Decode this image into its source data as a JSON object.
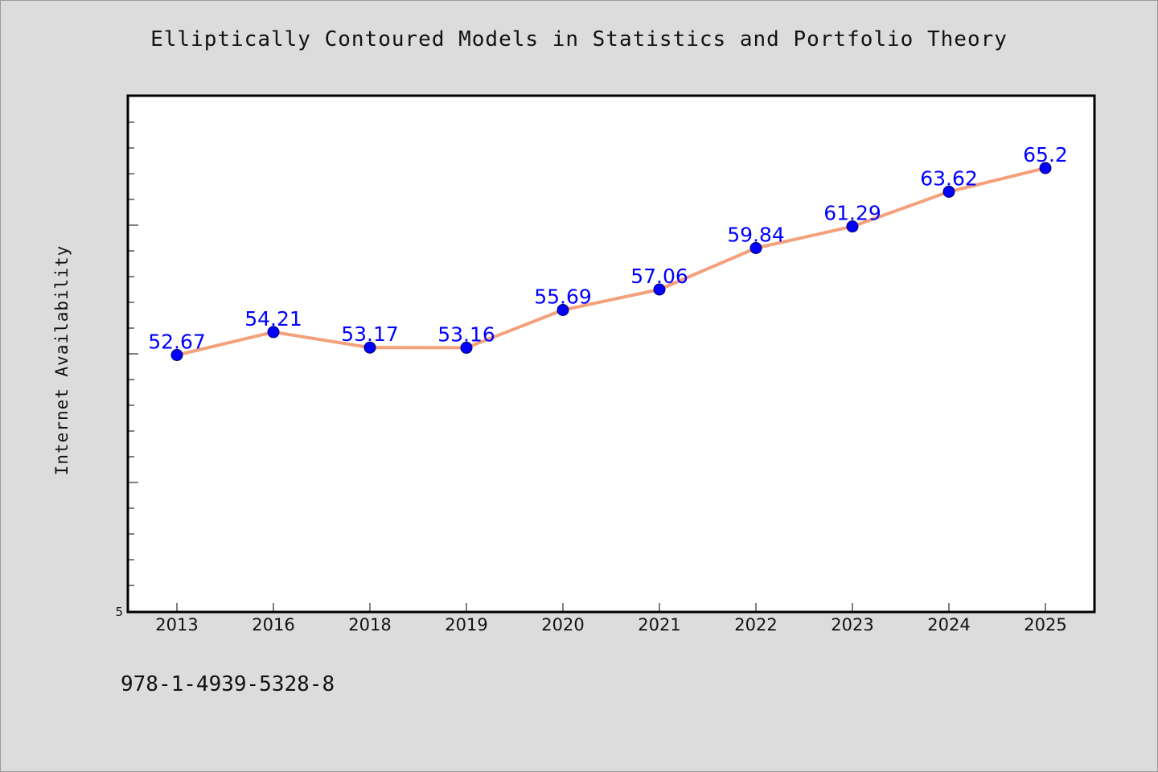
{
  "chart_data": {
    "type": "line",
    "title": "Elliptically Contoured Models in Statistics and Portfolio Theory",
    "ylabel": "Internet Availability",
    "xlabel": "",
    "categories": [
      "2013",
      "2016",
      "2018",
      "2019",
      "2020",
      "2021",
      "2022",
      "2023",
      "2024",
      "2025"
    ],
    "values": [
      52.67,
      54.21,
      53.17,
      53.16,
      55.69,
      57.06,
      59.84,
      61.29,
      63.62,
      65.2
    ],
    "data_labels": [
      "52.67",
      "54.21",
      "53.17",
      "53.16",
      "55.69",
      "57.06",
      "59.84",
      "61.29",
      "63.62",
      "65.2"
    ],
    "y_tick_label": "5",
    "ylim": [
      35.5,
      70.0
    ],
    "line_color": "#f4a07a",
    "marker_color": "#0000ff",
    "label_color": "#0000ff",
    "grid": false,
    "legend": "none"
  },
  "footer": {
    "code": "978-1-4939-5328-8"
  }
}
